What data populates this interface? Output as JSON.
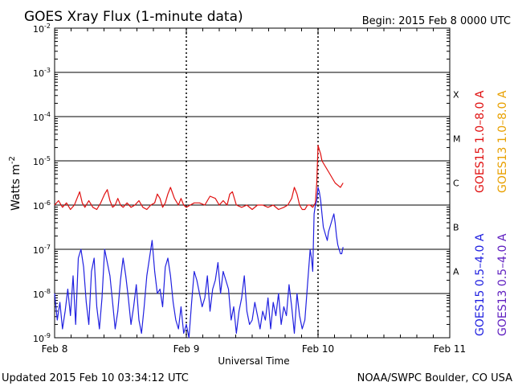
{
  "chart_data": {
    "type": "line",
    "title": "GOES Xray Flux (1-minute data)",
    "begin": "Begin:  2015 Feb 8 0000 UTC",
    "xlabel": "Universal Time",
    "ylabel_main": "Watts m",
    "ylabel_exp": "-2",
    "x_unit": "days since 2015 Feb 8 0000 UTC",
    "xlim": [
      0,
      3
    ],
    "ylim_log10": [
      -9,
      -2
    ],
    "x_ticks": [
      {
        "x": 0,
        "label": "Feb 8"
      },
      {
        "x": 1,
        "label": "Feb 9"
      },
      {
        "x": 2,
        "label": "Feb 10"
      },
      {
        "x": 3,
        "label": "Feb 11"
      }
    ],
    "y_ticks": [
      {
        "exp": -2,
        "base": "10",
        "sup": "-2"
      },
      {
        "exp": -3,
        "base": "10",
        "sup": "-3"
      },
      {
        "exp": -4,
        "base": "10",
        "sup": "-4"
      },
      {
        "exp": -5,
        "base": "10",
        "sup": "-5"
      },
      {
        "exp": -6,
        "base": "10",
        "sup": "-6"
      },
      {
        "exp": -7,
        "base": "10",
        "sup": "-7"
      },
      {
        "exp": -8,
        "base": "10",
        "sup": "-8"
      },
      {
        "exp": -9,
        "base": "10",
        "sup": "-9"
      }
    ],
    "class_labels": [
      {
        "exp": -3.5,
        "label": "X"
      },
      {
        "exp": -4.5,
        "label": "M"
      },
      {
        "exp": -5.5,
        "label": "C"
      },
      {
        "exp": -6.5,
        "label": "B"
      },
      {
        "exp": -7.5,
        "label": "A"
      }
    ],
    "legend_right": [
      {
        "text": "GOES15 1.0–8.0 A",
        "color": "#e01010"
      },
      {
        "text": "GOES15 0.5–4.0 A",
        "color": "#2020e0"
      }
    ],
    "legend_far_right": [
      {
        "text": "GOES13 1.0–8.0 A",
        "color": "#e8a000"
      },
      {
        "text": "GOES13 0.5–4.0 A",
        "color": "#6020c0"
      }
    ],
    "footer_left": "Updated 2015 Feb 10 03:34:12 UTC",
    "footer_right": "NOAA/SWPC Boulder, CO USA",
    "series": [
      {
        "name": "GOES15 1.0-8.0 A",
        "color": "#e01010",
        "x": [
          0.0,
          0.03,
          0.06,
          0.09,
          0.12,
          0.15,
          0.17,
          0.19,
          0.21,
          0.23,
          0.26,
          0.29,
          0.32,
          0.35,
          0.38,
          0.4,
          0.42,
          0.44,
          0.46,
          0.48,
          0.5,
          0.52,
          0.55,
          0.58,
          0.61,
          0.64,
          0.67,
          0.7,
          0.73,
          0.76,
          0.78,
          0.8,
          0.82,
          0.84,
          0.86,
          0.88,
          0.91,
          0.94,
          0.96,
          0.98,
          1.0,
          1.03,
          1.06,
          1.1,
          1.14,
          1.18,
          1.22,
          1.25,
          1.28,
          1.31,
          1.33,
          1.35,
          1.38,
          1.42,
          1.46,
          1.5,
          1.54,
          1.58,
          1.62,
          1.66,
          1.7,
          1.74,
          1.77,
          1.8,
          1.82,
          1.84,
          1.86,
          1.88,
          1.9,
          1.92,
          1.94,
          1.96,
          1.98,
          1.99,
          2.0,
          2.01,
          2.02,
          2.03,
          2.05,
          2.07,
          2.09,
          2.11,
          2.13,
          2.15,
          2.17,
          2.18,
          2.19
        ],
        "y_log10": [
          -6.0,
          -5.9,
          -6.05,
          -5.95,
          -6.1,
          -6.0,
          -5.85,
          -5.7,
          -5.95,
          -6.05,
          -5.9,
          -6.05,
          -6.1,
          -5.95,
          -5.75,
          -5.65,
          -5.9,
          -6.05,
          -6.0,
          -5.85,
          -6.0,
          -6.05,
          -5.95,
          -6.05,
          -6.0,
          -5.9,
          -6.05,
          -6.1,
          -6.0,
          -5.95,
          -5.75,
          -5.85,
          -6.05,
          -5.95,
          -5.75,
          -5.6,
          -5.85,
          -6.0,
          -5.85,
          -6.0,
          -6.05,
          -6.0,
          -5.95,
          -5.95,
          -6.0,
          -5.8,
          -5.85,
          -6.0,
          -5.9,
          -6.0,
          -5.75,
          -5.7,
          -6.0,
          -6.05,
          -6.0,
          -6.1,
          -6.0,
          -6.0,
          -6.05,
          -6.0,
          -6.1,
          -6.05,
          -6.0,
          -5.85,
          -5.6,
          -5.75,
          -6.0,
          -6.1,
          -6.1,
          -6.0,
          -6.0,
          -6.05,
          -5.95,
          -5.5,
          -4.65,
          -4.75,
          -4.85,
          -5.0,
          -5.1,
          -5.2,
          -5.3,
          -5.4,
          -5.5,
          -5.55,
          -5.6,
          -5.55,
          -5.5
        ]
      },
      {
        "name": "GOES15 0.5-4.0 A",
        "color": "#2020e0",
        "x": [
          0.0,
          0.02,
          0.04,
          0.06,
          0.08,
          0.1,
          0.12,
          0.14,
          0.16,
          0.18,
          0.2,
          0.22,
          0.24,
          0.26,
          0.28,
          0.3,
          0.32,
          0.34,
          0.36,
          0.38,
          0.4,
          0.42,
          0.44,
          0.46,
          0.48,
          0.5,
          0.52,
          0.54,
          0.56,
          0.58,
          0.6,
          0.62,
          0.64,
          0.66,
          0.68,
          0.7,
          0.72,
          0.74,
          0.76,
          0.78,
          0.8,
          0.82,
          0.84,
          0.86,
          0.88,
          0.9,
          0.92,
          0.94,
          0.96,
          0.98,
          1.0,
          1.02,
          1.04,
          1.06,
          1.08,
          1.1,
          1.12,
          1.14,
          1.16,
          1.18,
          1.2,
          1.22,
          1.24,
          1.26,
          1.28,
          1.3,
          1.32,
          1.34,
          1.36,
          1.38,
          1.4,
          1.42,
          1.44,
          1.46,
          1.48,
          1.5,
          1.52,
          1.54,
          1.56,
          1.58,
          1.6,
          1.62,
          1.64,
          1.66,
          1.68,
          1.7,
          1.72,
          1.74,
          1.76,
          1.78,
          1.8,
          1.82,
          1.84,
          1.86,
          1.88,
          1.9,
          1.92,
          1.94,
          1.95,
          1.96,
          1.97,
          1.98,
          1.99,
          2.0,
          2.01,
          2.02,
          2.03,
          2.04,
          2.05,
          2.06,
          2.07,
          2.08,
          2.09,
          2.1,
          2.11,
          2.12,
          2.13,
          2.14,
          2.15,
          2.16,
          2.17,
          2.18,
          2.19
        ],
        "y_log10": [
          -8.0,
          -8.6,
          -8.2,
          -8.8,
          -8.4,
          -7.9,
          -8.5,
          -7.6,
          -8.7,
          -7.2,
          -7.0,
          -7.4,
          -8.2,
          -8.7,
          -7.5,
          -7.2,
          -8.3,
          -8.8,
          -8.1,
          -7.0,
          -7.3,
          -7.6,
          -8.2,
          -8.8,
          -8.4,
          -7.7,
          -7.2,
          -7.6,
          -8.1,
          -8.7,
          -8.3,
          -7.8,
          -8.6,
          -8.9,
          -8.3,
          -7.6,
          -7.2,
          -6.8,
          -7.5,
          -8.0,
          -7.9,
          -8.3,
          -7.4,
          -7.2,
          -7.6,
          -8.2,
          -8.6,
          -8.8,
          -8.3,
          -8.9,
          -8.7,
          -9.0,
          -8.2,
          -7.5,
          -7.7,
          -8.0,
          -8.3,
          -8.1,
          -7.6,
          -8.4,
          -7.9,
          -7.7,
          -7.3,
          -8.0,
          -7.5,
          -7.7,
          -7.9,
          -8.6,
          -8.3,
          -8.9,
          -8.4,
          -8.1,
          -7.6,
          -8.4,
          -8.7,
          -8.6,
          -8.2,
          -8.5,
          -8.8,
          -8.4,
          -8.6,
          -8.1,
          -8.8,
          -8.2,
          -8.5,
          -8.0,
          -8.7,
          -8.3,
          -8.5,
          -7.8,
          -8.3,
          -8.9,
          -8.0,
          -8.5,
          -8.8,
          -8.6,
          -7.8,
          -7.0,
          -7.2,
          -7.5,
          -6.2,
          -6.0,
          -5.9,
          -5.6,
          -5.7,
          -5.9,
          -6.2,
          -6.5,
          -6.6,
          -6.7,
          -6.8,
          -6.6,
          -6.5,
          -6.4,
          -6.3,
          -6.2,
          -6.4,
          -6.7,
          -6.9,
          -7.0,
          -7.1,
          -7.1,
          -6.95
        ]
      }
    ]
  }
}
